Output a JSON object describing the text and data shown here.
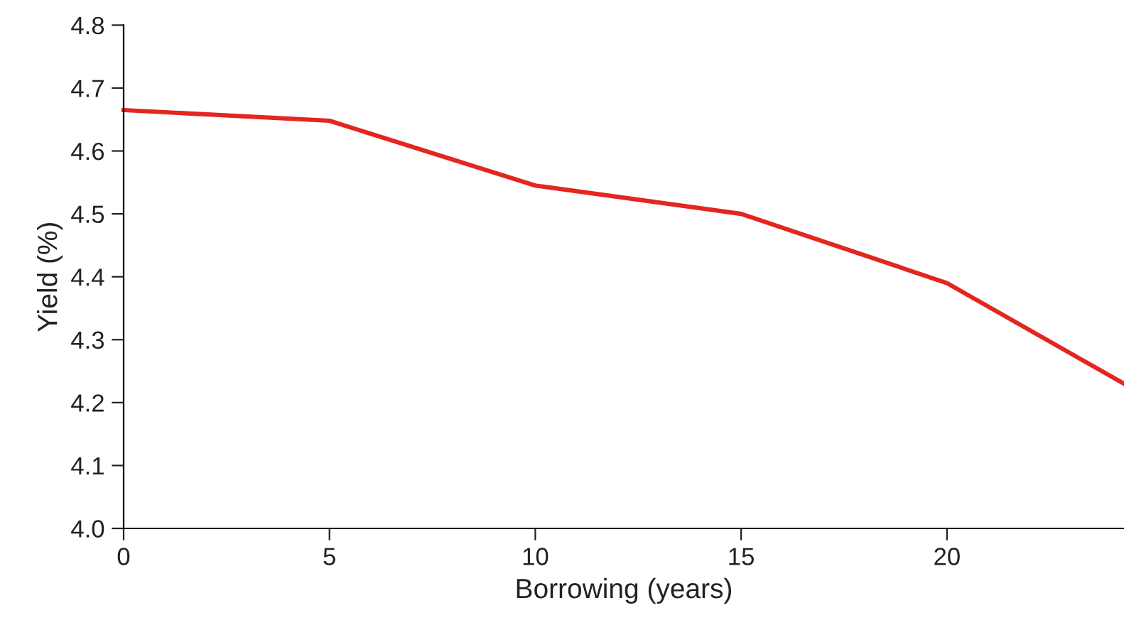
{
  "chart_data": {
    "type": "line",
    "xlabel": "Borrowing (years)",
    "ylabel": "Yield (%)",
    "x": [
      0,
      5,
      10,
      15,
      20,
      24.3
    ],
    "series": [
      {
        "color": "#e3261f",
        "values": [
          4.665,
          4.648,
          4.545,
          4.5,
          4.39,
          4.23
        ]
      }
    ],
    "xlim": [
      0,
      24.3
    ],
    "xticks": [
      0,
      5,
      10,
      15,
      20
    ],
    "ylim": [
      4.0,
      4.8
    ],
    "yticks": [
      {
        "value": 4,
        "label": "4.0"
      },
      4.1,
      4.2,
      4.3,
      4.4,
      4.5,
      4.6,
      4.7,
      4.8
    ],
    "grid": false,
    "legend": false,
    "marker": "none",
    "line_style": "solid"
  }
}
